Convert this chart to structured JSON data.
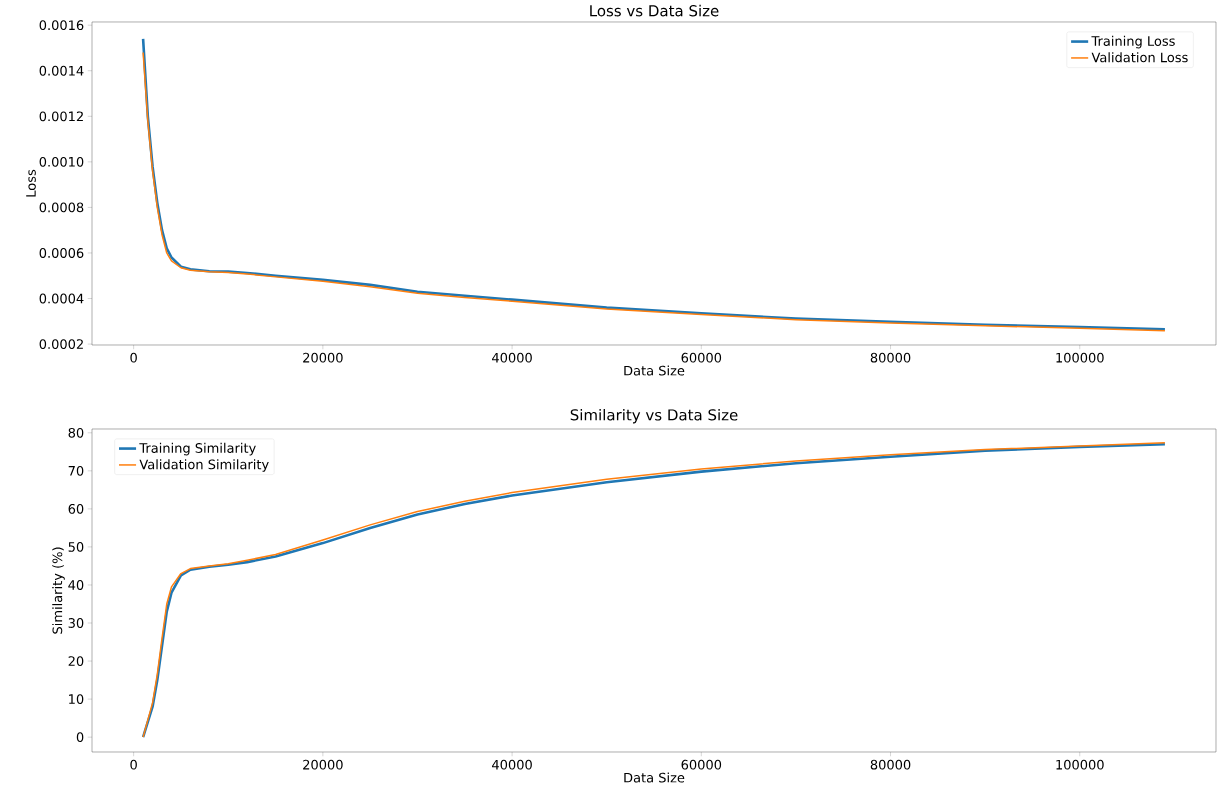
{
  "chart_data": [
    {
      "type": "line",
      "title": "Loss vs Data Size",
      "xlabel": "Data Size",
      "ylabel": "Loss",
      "legend": "top right",
      "x": [
        1000,
        1500,
        2000,
        2500,
        3000,
        3500,
        4000,
        5000,
        6000,
        8000,
        10000,
        12000,
        15000,
        20000,
        25000,
        30000,
        35000,
        40000,
        50000,
        60000,
        70000,
        80000,
        90000,
        100000,
        109000
      ],
      "xlim": [
        -4400,
        114400
      ],
      "xticks": [
        0,
        20000,
        40000,
        60000,
        80000,
        100000
      ],
      "ylim": [
        0.000196,
        0.001614
      ],
      "yticks": [
        0.0002,
        0.0004,
        0.0006,
        0.0008,
        {
          "value": 0.001,
          "label": "0.0010"
        },
        0.0012,
        0.0014,
        0.0016
      ],
      "series": [
        {
          "name": "Training Loss",
          "color": "#1f77b4",
          "values": [
            0.00154,
            0.0012,
            0.00098,
            0.00082,
            0.0007,
            0.00062,
            0.00058,
            0.00054,
            0.000528,
            0.00052,
            0.000518,
            0.000512,
            0.0005,
            0.000482,
            0.00046,
            0.00043,
            0.000412,
            0.000395,
            0.00036,
            0.000335,
            0.000312,
            0.000298,
            0.000285,
            0.000275,
            0.000265
          ]
        },
        {
          "name": "Validation Loss",
          "color": "#ff7f0e",
          "values": [
            0.00148,
            0.00118,
            0.00096,
            0.0008,
            0.00068,
            0.0006,
            0.000565,
            0.000535,
            0.000524,
            0.000517,
            0.000514,
            0.000508,
            0.000495,
            0.000476,
            0.000452,
            0.000423,
            0.000405,
            0.000388,
            0.000354,
            0.00033,
            0.000307,
            0.000292,
            0.00028,
            0.00027,
            0.000258
          ]
        }
      ]
    },
    {
      "type": "line",
      "title": "Similarity vs Data Size",
      "xlabel": "Data Size",
      "ylabel": "Similarity (%)",
      "legend": "top left",
      "x": [
        1000,
        2000,
        2500,
        3000,
        3500,
        4000,
        5000,
        6000,
        8000,
        10000,
        12000,
        15000,
        20000,
        25000,
        30000,
        35000,
        40000,
        50000,
        60000,
        70000,
        80000,
        90000,
        100000,
        109000
      ],
      "xlim": [
        -4400,
        114400
      ],
      "xticks": [
        0,
        20000,
        40000,
        60000,
        80000,
        100000
      ],
      "ylim": [
        -3.9,
        81
      ],
      "yticks": [
        0,
        10,
        20,
        30,
        40,
        50,
        60,
        70,
        80
      ],
      "series": [
        {
          "name": "Training Similarity",
          "color": "#1f77b4",
          "values": [
            0,
            8,
            15,
            24,
            33,
            38,
            42.5,
            44,
            44.8,
            45.3,
            46,
            47.5,
            51,
            55,
            58.5,
            61.3,
            63.5,
            67,
            69.8,
            72,
            73.7,
            75.3,
            76.3,
            77
          ]
        },
        {
          "name": "Validation Similarity",
          "color": "#ff7f0e",
          "values": [
            0,
            9,
            16.5,
            26,
            35,
            39.5,
            43,
            44.3,
            45,
            45.6,
            46.5,
            48,
            51.8,
            55.8,
            59.3,
            62,
            64.3,
            67.8,
            70.5,
            72.6,
            74.2,
            75.6,
            76.5,
            77.4
          ]
        }
      ]
    }
  ]
}
